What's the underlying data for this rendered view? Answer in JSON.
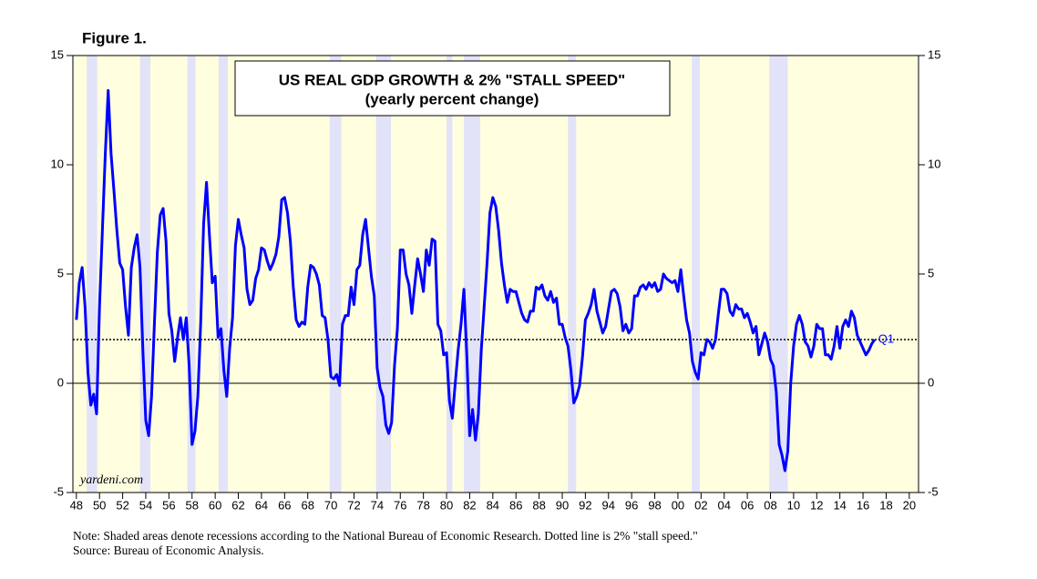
{
  "chart_data": {
    "type": "line",
    "figure_label": "Figure 1.",
    "title": "US REAL GDP GROWTH & 2% \"STALL SPEED\"",
    "subtitle": "(yearly percent change)",
    "watermark": "yardeni.com",
    "annotation": "Q1",
    "note": "Note: Shaded areas denote recessions according to the National Bureau of Economic Research. Dotted line is 2% \"stall speed.\"",
    "source": "Source: Bureau of Economic Analysis.",
    "color": "#0000ff",
    "stall_speed": 2,
    "recessions": [
      [
        1948.9,
        1949.8
      ],
      [
        1953.5,
        1954.4
      ],
      [
        1957.6,
        1958.3
      ],
      [
        1960.3,
        1961.1
      ],
      [
        1969.9,
        1970.9
      ],
      [
        1973.9,
        1975.2
      ],
      [
        1980.0,
        1980.5
      ],
      [
        1981.5,
        1982.9
      ],
      [
        1990.5,
        1991.2
      ],
      [
        2001.2,
        2001.9
      ],
      [
        2007.9,
        2009.5
      ]
    ],
    "xlim": [
      1947.7,
      2020.8
    ],
    "xticks": [
      {
        "value": 1948,
        "label": "48"
      },
      {
        "value": 1950,
        "label": "50"
      },
      {
        "value": 1952,
        "label": "52"
      },
      {
        "value": 1954,
        "label": "54"
      },
      {
        "value": 1956,
        "label": "56"
      },
      {
        "value": 1958,
        "label": "58"
      },
      {
        "value": 1960,
        "label": "60"
      },
      {
        "value": 1962,
        "label": "62"
      },
      {
        "value": 1964,
        "label": "64"
      },
      {
        "value": 1966,
        "label": "66"
      },
      {
        "value": 1968,
        "label": "68"
      },
      {
        "value": 1970,
        "label": "70"
      },
      {
        "value": 1972,
        "label": "72"
      },
      {
        "value": 1974,
        "label": "74"
      },
      {
        "value": 1976,
        "label": "76"
      },
      {
        "value": 1978,
        "label": "78"
      },
      {
        "value": 1980,
        "label": "80"
      },
      {
        "value": 1982,
        "label": "82"
      },
      {
        "value": 1984,
        "label": "84"
      },
      {
        "value": 1986,
        "label": "86"
      },
      {
        "value": 1988,
        "label": "88"
      },
      {
        "value": 1990,
        "label": "90"
      },
      {
        "value": 1992,
        "label": "92"
      },
      {
        "value": 1994,
        "label": "94"
      },
      {
        "value": 1996,
        "label": "96"
      },
      {
        "value": 1998,
        "label": "98"
      },
      {
        "value": 2000,
        "label": "00"
      },
      {
        "value": 2002,
        "label": "02"
      },
      {
        "value": 2004,
        "label": "04"
      },
      {
        "value": 2006,
        "label": "06"
      },
      {
        "value": 2008,
        "label": "08"
      },
      {
        "value": 2010,
        "label": "10"
      },
      {
        "value": 2012,
        "label": "12"
      },
      {
        "value": 2014,
        "label": "14"
      },
      {
        "value": 2016,
        "label": "16"
      },
      {
        "value": 2018,
        "label": "18"
      },
      {
        "value": 2020,
        "label": "20"
      }
    ],
    "ylim": [
      -5,
      15
    ],
    "yticks": [
      -5,
      0,
      5,
      10,
      15
    ],
    "y2lim": [
      -5,
      15
    ],
    "y2ticks": [
      -5,
      0,
      5,
      10,
      15
    ],
    "x": [
      1948.0,
      1948.25,
      1948.5,
      1948.75,
      1949.0,
      1949.25,
      1949.5,
      1949.75,
      1950.0,
      1950.25,
      1950.5,
      1950.75,
      1951.0,
      1951.25,
      1951.5,
      1951.75,
      1952.0,
      1952.25,
      1952.5,
      1952.75,
      1953.0,
      1953.25,
      1953.5,
      1953.75,
      1954.0,
      1954.25,
      1954.5,
      1954.75,
      1955.0,
      1955.25,
      1955.5,
      1955.75,
      1956.0,
      1956.25,
      1956.5,
      1956.75,
      1957.0,
      1957.25,
      1957.5,
      1957.75,
      1958.0,
      1958.25,
      1958.5,
      1958.75,
      1959.0,
      1959.25,
      1959.5,
      1959.75,
      1960.0,
      1960.25,
      1960.5,
      1960.75,
      1961.0,
      1961.25,
      1961.5,
      1961.75,
      1962.0,
      1962.25,
      1962.5,
      1962.75,
      1963.0,
      1963.25,
      1963.5,
      1963.75,
      1964.0,
      1964.25,
      1964.5,
      1964.75,
      1965.0,
      1965.25,
      1965.5,
      1965.75,
      1966.0,
      1966.25,
      1966.5,
      1966.75,
      1967.0,
      1967.25,
      1967.5,
      1967.75,
      1968.0,
      1968.25,
      1968.5,
      1968.75,
      1969.0,
      1969.25,
      1969.5,
      1969.75,
      1970.0,
      1970.25,
      1970.5,
      1970.75,
      1971.0,
      1971.25,
      1971.5,
      1971.75,
      1972.0,
      1972.25,
      1972.5,
      1972.75,
      1973.0,
      1973.25,
      1973.5,
      1973.75,
      1974.0,
      1974.25,
      1974.5,
      1974.75,
      1975.0,
      1975.25,
      1975.5,
      1975.75,
      1976.0,
      1976.25,
      1976.5,
      1976.75,
      1977.0,
      1977.25,
      1977.5,
      1977.75,
      1978.0,
      1978.25,
      1978.5,
      1978.75,
      1979.0,
      1979.25,
      1979.5,
      1979.75,
      1980.0,
      1980.25,
      1980.5,
      1980.75,
      1981.0,
      1981.25,
      1981.5,
      1981.75,
      1982.0,
      1982.25,
      1982.5,
      1982.75,
      1983.0,
      1983.25,
      1983.5,
      1983.75,
      1984.0,
      1984.25,
      1984.5,
      1984.75,
      1985.0,
      1985.25,
      1985.5,
      1985.75,
      1986.0,
      1986.25,
      1986.5,
      1986.75,
      1987.0,
      1987.25,
      1987.5,
      1987.75,
      1988.0,
      1988.25,
      1988.5,
      1988.75,
      1989.0,
      1989.25,
      1989.5,
      1989.75,
      1990.0,
      1990.25,
      1990.5,
      1990.75,
      1991.0,
      1991.25,
      1991.5,
      1991.75,
      1992.0,
      1992.25,
      1992.5,
      1992.75,
      1993.0,
      1993.25,
      1993.5,
      1993.75,
      1994.0,
      1994.25,
      1994.5,
      1994.75,
      1995.0,
      1995.25,
      1995.5,
      1995.75,
      1996.0,
      1996.25,
      1996.5,
      1996.75,
      1997.0,
      1997.25,
      1997.5,
      1997.75,
      1998.0,
      1998.25,
      1998.5,
      1998.75,
      1999.0,
      1999.25,
      1999.5,
      1999.75,
      2000.0,
      2000.25,
      2000.5,
      2000.75,
      2001.0,
      2001.25,
      2001.5,
      2001.75,
      2002.0,
      2002.25,
      2002.5,
      2002.75,
      2003.0,
      2003.25,
      2003.5,
      2003.75,
      2004.0,
      2004.25,
      2004.5,
      2004.75,
      2005.0,
      2005.25,
      2005.5,
      2005.75,
      2006.0,
      2006.25,
      2006.5,
      2006.75,
      2007.0,
      2007.25,
      2007.5,
      2007.75,
      2008.0,
      2008.25,
      2008.5,
      2008.75,
      2009.0,
      2009.25,
      2009.5,
      2009.75,
      2010.0,
      2010.25,
      2010.5,
      2010.75,
      2011.0,
      2011.25,
      2011.5,
      2011.75,
      2012.0,
      2012.25,
      2012.5,
      2012.75,
      2013.0,
      2013.25,
      2013.5,
      2013.75,
      2014.0,
      2014.25,
      2014.5,
      2014.75,
      2015.0,
      2015.25,
      2015.5,
      2015.75,
      2016.0,
      2016.25,
      2016.5,
      2016.75,
      2017.0
    ],
    "values": [
      2.9,
      4.6,
      5.3,
      3.5,
      0.5,
      -1.0,
      -0.5,
      -1.4,
      3.5,
      7.0,
      10.5,
      13.4,
      10.5,
      8.8,
      7.0,
      5.5,
      5.2,
      3.5,
      2.2,
      5.3,
      6.2,
      6.8,
      5.3,
      1.5,
      -1.7,
      -2.4,
      -0.6,
      2.8,
      6.0,
      7.7,
      8.0,
      6.5,
      3.2,
      2.4,
      1.0,
      2.1,
      3.0,
      2.0,
      3.0,
      0.8,
      -2.8,
      -2.2,
      -0.6,
      2.8,
      7.3,
      9.2,
      6.8,
      4.6,
      4.9,
      2.1,
      2.5,
      0.6,
      -0.6,
      1.6,
      3.0,
      6.3,
      7.5,
      6.8,
      6.2,
      4.3,
      3.6,
      3.8,
      4.8,
      5.2,
      6.2,
      6.1,
      5.6,
      5.2,
      5.5,
      5.9,
      6.7,
      8.4,
      8.5,
      7.8,
      6.5,
      4.4,
      2.9,
      2.6,
      2.8,
      2.7,
      4.4,
      5.4,
      5.3,
      5.0,
      4.5,
      3.1,
      3.0,
      2.0,
      0.3,
      0.2,
      0.4,
      -0.1,
      2.7,
      3.1,
      3.1,
      4.4,
      3.6,
      5.2,
      5.4,
      6.8,
      7.5,
      6.2,
      4.9,
      4.0,
      0.7,
      -0.2,
      -0.6,
      -1.9,
      -2.3,
      -1.8,
      0.8,
      2.5,
      6.1,
      6.1,
      5.0,
      4.5,
      3.2,
      4.5,
      5.7,
      5.0,
      4.2,
      6.1,
      5.4,
      6.6,
      6.5,
      2.7,
      2.4,
      1.3,
      1.4,
      -0.8,
      -1.6,
      0.0,
      1.5,
      2.7,
      4.3,
      1.3,
      -2.4,
      -1.2,
      -2.6,
      -1.4,
      1.5,
      3.5,
      5.5,
      7.8,
      8.5,
      8.1,
      7.0,
      5.5,
      4.5,
      3.7,
      4.3,
      4.2,
      4.2,
      3.7,
      3.2,
      2.9,
      2.8,
      3.3,
      3.3,
      4.4,
      4.3,
      4.5,
      4.0,
      3.8,
      4.2,
      3.7,
      3.9,
      2.7,
      2.7,
      2.1,
      1.7,
      0.6,
      -0.9,
      -0.6,
      -0.1,
      1.2,
      2.9,
      3.2,
      3.6,
      4.3,
      3.3,
      2.8,
      2.3,
      2.6,
      3.4,
      4.2,
      4.3,
      4.1,
      3.5,
      2.4,
      2.7,
      2.3,
      2.5,
      4.0,
      4.0,
      4.4,
      4.5,
      4.3,
      4.6,
      4.4,
      4.6,
      4.2,
      4.3,
      5.0,
      4.8,
      4.7,
      4.6,
      4.7,
      4.2,
      5.2,
      4.0,
      2.9,
      2.3,
      1.0,
      0.5,
      0.2,
      1.4,
      1.3,
      2.0,
      1.9,
      1.6,
      2.0,
      3.2,
      4.3,
      4.3,
      4.1,
      3.3,
      3.1,
      3.6,
      3.4,
      3.4,
      3.0,
      3.2,
      2.8,
      2.3,
      2.6,
      1.3,
      1.8,
      2.3,
      1.9,
      1.1,
      0.8,
      -0.4,
      -2.8,
      -3.3,
      -4.0,
      -3.1,
      0.0,
      1.7,
      2.7,
      3.1,
      2.7,
      1.9,
      1.7,
      1.2,
      1.7,
      2.7,
      2.5,
      2.5,
      1.3,
      1.3,
      1.1,
      1.7,
      2.6,
      1.6,
      2.6,
      2.9,
      2.6,
      3.3,
      3.0,
      2.2,
      1.9,
      1.6,
      1.3,
      1.5,
      1.8,
      2.0
    ]
  }
}
